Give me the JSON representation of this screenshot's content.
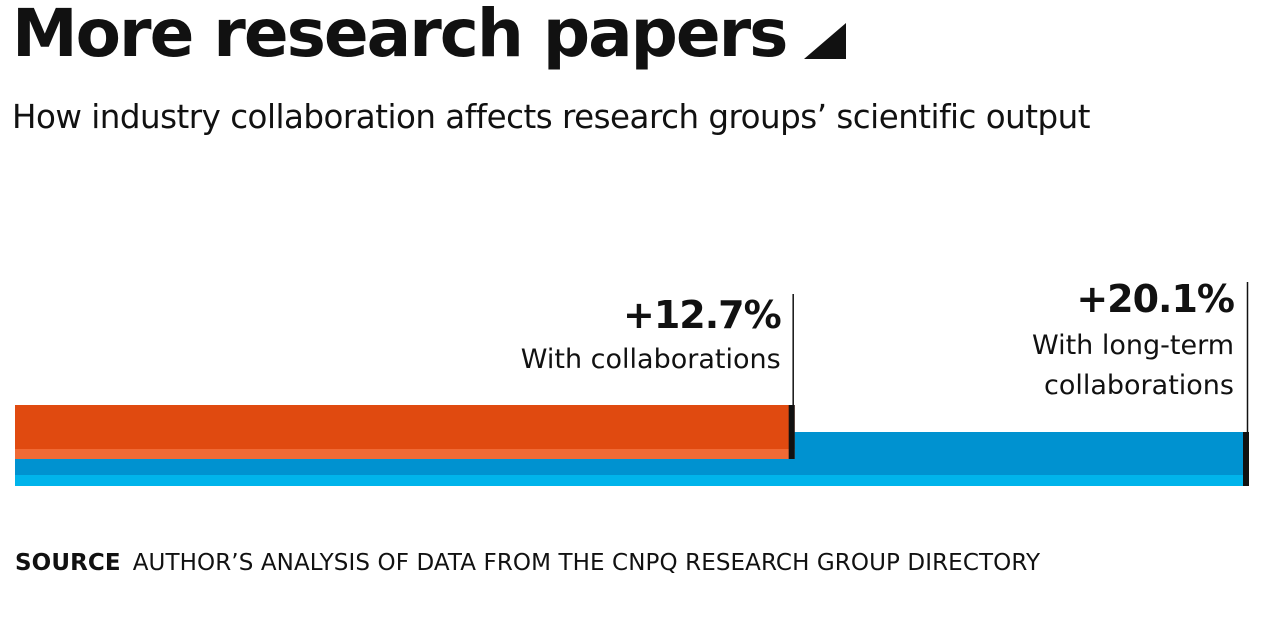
{
  "title": "More research papers",
  "subtitle": "How industry collaboration affects research groups’ scientific output",
  "footer": {
    "label": "SOURCE",
    "text": "AUTHOR’S ANALYSIS OF DATA FROM THE CNPQ RESEARCH GROUP DIRECTORY"
  },
  "colors": {
    "orange": "#E04A10",
    "orange_light": "#F06A35",
    "blue": "#0092D0",
    "blue_light": "#00B4EB",
    "marker": "#111111"
  },
  "chart_data": {
    "type": "bar",
    "orientation": "horizontal",
    "title": "More research papers",
    "subtitle": "How industry collaboration affects research groups’ scientific output",
    "series": [
      {
        "value": 12.7,
        "value_label": "+12.7%",
        "label_lines": [
          "With collaborations"
        ],
        "color": "#E04A10"
      },
      {
        "value": 20.1,
        "value_label": "+20.1%",
        "label_lines": [
          "With long-term",
          "collaborations"
        ],
        "color": "#0092D0"
      }
    ],
    "xlim": [
      0,
      20.1
    ],
    "grid": false
  }
}
